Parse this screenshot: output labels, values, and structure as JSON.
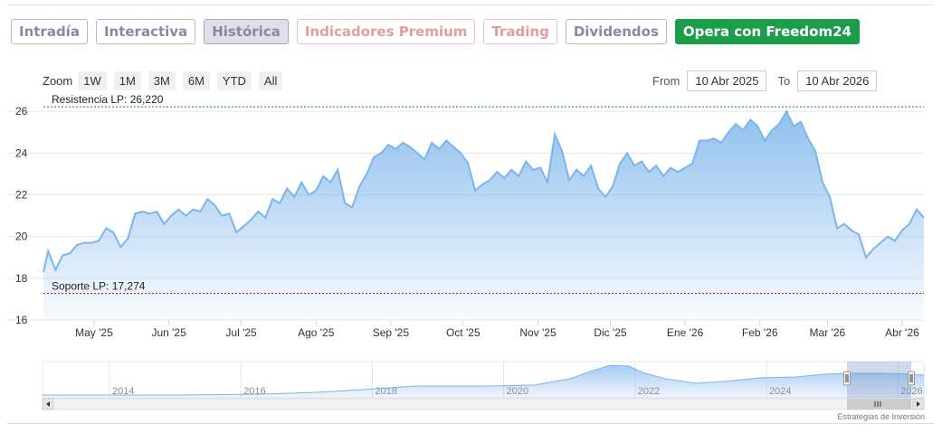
{
  "tabs": [
    {
      "label": "Intradía",
      "style": "normal"
    },
    {
      "label": "Interactiva",
      "style": "normal"
    },
    {
      "label": "Histórica",
      "style": "active"
    },
    {
      "label": "Indicadores Premium",
      "style": "premium"
    },
    {
      "label": "Trading",
      "style": "premium"
    },
    {
      "label": "Dividendos",
      "style": "normal"
    },
    {
      "label": "Opera con Freedom24",
      "style": "cta"
    }
  ],
  "zoom": {
    "label": "Zoom",
    "buttons": [
      "1W",
      "1M",
      "3M",
      "6M",
      "YTD",
      "All"
    ]
  },
  "range": {
    "from_label": "From",
    "from_value": "10 Abr 2025",
    "to_label": "To",
    "to_value": "10 Abr 2026"
  },
  "credit": "Estrategias de Inversión",
  "colors": {
    "line": "#7cb5ec",
    "cta": "#1b9d4a",
    "resistance": "#2e7d32",
    "support": "#8b1a1a"
  },
  "chart_data": {
    "type": "area",
    "title": "",
    "xlabel": "",
    "ylabel": "",
    "ylim": [
      16,
      26.4
    ],
    "yticks": [
      16,
      18,
      20,
      22,
      24,
      26
    ],
    "xrange": [
      "2025-04-10",
      "2026-04-10"
    ],
    "xticks": [
      {
        "date": "2025-05-01",
        "label": "May '25"
      },
      {
        "date": "2025-06-01",
        "label": "Jun '25"
      },
      {
        "date": "2025-07-01",
        "label": "Jul '25"
      },
      {
        "date": "2025-08-01",
        "label": "Ago '25"
      },
      {
        "date": "2025-09-01",
        "label": "Sep '25"
      },
      {
        "date": "2025-10-01",
        "label": "Oct '25"
      },
      {
        "date": "2025-11-01",
        "label": "Nov '25"
      },
      {
        "date": "2025-12-01",
        "label": "Dic '25"
      },
      {
        "date": "2026-01-01",
        "label": "Ene '26"
      },
      {
        "date": "2026-02-01",
        "label": "Feb '26"
      },
      {
        "date": "2026-03-01",
        "label": "Mar '26"
      },
      {
        "date": "2026-04-01",
        "label": "Abr '26"
      }
    ],
    "reference_lines": [
      {
        "label": "Resistencia LP: 26,220",
        "value": 26.22
      },
      {
        "label": "Soporte LP: 17,274",
        "value": 17.274
      }
    ],
    "series": [
      {
        "x": [
          "2025-04-10",
          "2025-04-12",
          "2025-04-15",
          "2025-04-18",
          "2025-04-21",
          "2025-04-24",
          "2025-04-27",
          "2025-04-30",
          "2025-05-03",
          "2025-05-06",
          "2025-05-09",
          "2025-05-12",
          "2025-05-15",
          "2025-05-18",
          "2025-05-21",
          "2025-05-24",
          "2025-05-27",
          "2025-05-30",
          "2025-06-02",
          "2025-06-05",
          "2025-06-08",
          "2025-06-11",
          "2025-06-14",
          "2025-06-17",
          "2025-06-20",
          "2025-06-23",
          "2025-06-26",
          "2025-06-29",
          "2025-07-02",
          "2025-07-05",
          "2025-07-08",
          "2025-07-11",
          "2025-07-14",
          "2025-07-17",
          "2025-07-20",
          "2025-07-23",
          "2025-07-26",
          "2025-07-29",
          "2025-08-01",
          "2025-08-04",
          "2025-08-07",
          "2025-08-10",
          "2025-08-13",
          "2025-08-16",
          "2025-08-19",
          "2025-08-22",
          "2025-08-25",
          "2025-08-28",
          "2025-08-31",
          "2025-09-03",
          "2025-09-06",
          "2025-09-09",
          "2025-09-12",
          "2025-09-15",
          "2025-09-18",
          "2025-09-21",
          "2025-09-24",
          "2025-09-27",
          "2025-09-30",
          "2025-10-03",
          "2025-10-06",
          "2025-10-09",
          "2025-10-12",
          "2025-10-15",
          "2025-10-18",
          "2025-10-21",
          "2025-10-24",
          "2025-10-27",
          "2025-10-30",
          "2025-11-02",
          "2025-11-05",
          "2025-11-08",
          "2025-11-11",
          "2025-11-14",
          "2025-11-17",
          "2025-11-20",
          "2025-11-23",
          "2025-11-26",
          "2025-11-29",
          "2025-12-02",
          "2025-12-05",
          "2025-12-08",
          "2025-12-11",
          "2025-12-14",
          "2025-12-17",
          "2025-12-20",
          "2025-12-23",
          "2025-12-26",
          "2025-12-29",
          "2026-01-01",
          "2026-01-04",
          "2026-01-07",
          "2026-01-10",
          "2026-01-13",
          "2026-01-16",
          "2026-01-19",
          "2026-01-22",
          "2026-01-25",
          "2026-01-28",
          "2026-01-31",
          "2026-02-03",
          "2026-02-06",
          "2026-02-09",
          "2026-02-12",
          "2026-02-15",
          "2026-02-18",
          "2026-02-21",
          "2026-02-24",
          "2026-02-27",
          "2026-03-02",
          "2026-03-05",
          "2026-03-08",
          "2026-03-11",
          "2026-03-14",
          "2026-03-17",
          "2026-03-20",
          "2026-03-23",
          "2026-03-26",
          "2026-03-29",
          "2026-04-01",
          "2026-04-04",
          "2026-04-07",
          "2026-04-10"
        ],
        "values": [
          18.3,
          19.3,
          18.4,
          19.1,
          19.2,
          19.6,
          19.7,
          19.7,
          19.8,
          20.4,
          20.2,
          19.5,
          19.9,
          21.1,
          21.2,
          21.1,
          21.2,
          20.6,
          21.0,
          21.3,
          21.0,
          21.3,
          21.2,
          21.8,
          21.5,
          21.0,
          21.1,
          20.2,
          20.5,
          20.8,
          21.2,
          20.9,
          21.8,
          21.6,
          22.3,
          21.9,
          22.6,
          22.0,
          22.2,
          22.9,
          22.6,
          23.2,
          21.6,
          21.4,
          22.4,
          23.0,
          23.8,
          24.0,
          24.4,
          24.2,
          24.5,
          24.3,
          24.0,
          23.7,
          24.5,
          24.2,
          24.6,
          24.3,
          24.0,
          23.5,
          22.2,
          22.5,
          22.7,
          23.1,
          22.8,
          23.2,
          22.9,
          23.6,
          23.2,
          23.3,
          22.6,
          24.9,
          24.1,
          22.7,
          23.2,
          22.9,
          23.4,
          22.3,
          21.9,
          22.4,
          23.5,
          24.0,
          23.4,
          23.6,
          23.1,
          23.4,
          22.9,
          23.3,
          23.1,
          23.3,
          23.5,
          24.6,
          24.6,
          24.7,
          24.5,
          25.0,
          25.4,
          25.1,
          25.6,
          25.3,
          24.6,
          25.1,
          25.4,
          26.0,
          25.3,
          25.5,
          24.7,
          24.1,
          22.6,
          21.9,
          20.4,
          20.6,
          20.3,
          20.1,
          19.0,
          19.4,
          19.7,
          20.0,
          19.8,
          20.3,
          20.6,
          21.3,
          20.9
        ]
      }
    ],
    "navigator": {
      "xlabels": [
        "2014",
        "2016",
        "2018",
        "2020",
        "2022",
        "2024",
        "2026"
      ]
    }
  }
}
